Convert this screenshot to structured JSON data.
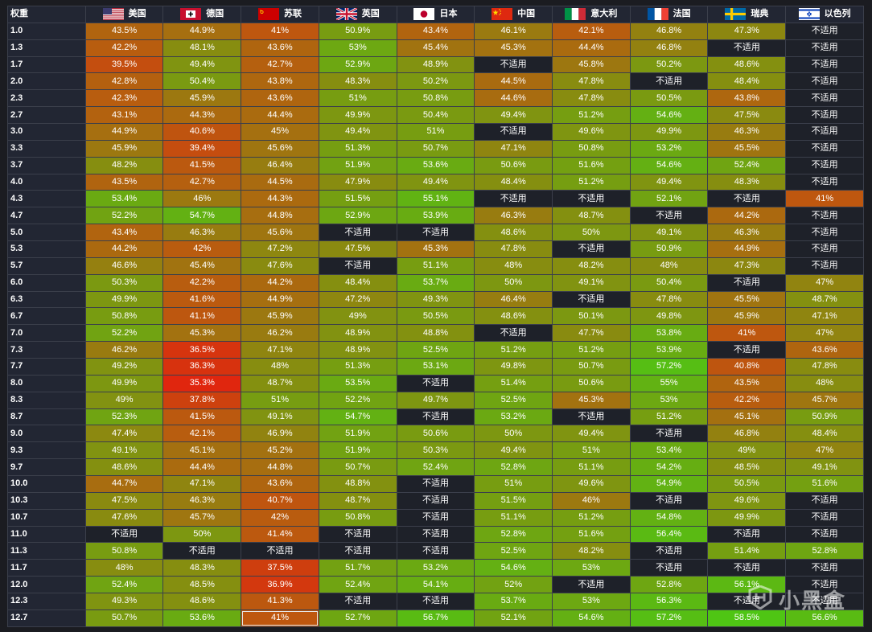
{
  "chart_data": {
    "type": "heatmap",
    "corner_label": "权重",
    "na_label": "不适用",
    "countries": [
      {
        "name": "美国",
        "flag": "us-flag"
      },
      {
        "name": "德国",
        "flag": "germany-flag"
      },
      {
        "name": "苏联",
        "flag": "ussr-flag"
      },
      {
        "name": "英国",
        "flag": "uk-flag"
      },
      {
        "name": "日本",
        "flag": "japan-flag"
      },
      {
        "name": "中国",
        "flag": "china-flag"
      },
      {
        "name": "意大利",
        "flag": "italy-flag"
      },
      {
        "name": "法国",
        "flag": "france-flag"
      },
      {
        "name": "瑞典",
        "flag": "sweden-flag"
      },
      {
        "name": "以色列",
        "flag": "israel-flag"
      }
    ],
    "rows": [
      "1.0",
      "1.3",
      "1.7",
      "2.0",
      "2.3",
      "2.7",
      "3.0",
      "3.3",
      "3.7",
      "4.0",
      "4.3",
      "4.7",
      "5.0",
      "5.3",
      "5.7",
      "6.0",
      "6.3",
      "6.7",
      "7.0",
      "7.3",
      "7.7",
      "8.0",
      "8.3",
      "8.7",
      "9.0",
      "9.3",
      "9.7",
      "10.0",
      "10.3",
      "10.7",
      "11.0",
      "11.3",
      "11.7",
      "12.0",
      "12.3",
      "12.7"
    ],
    "values": [
      [
        43.5,
        44.9,
        41,
        50.9,
        43.4,
        46.1,
        42.1,
        46.8,
        47.3,
        null
      ],
      [
        42.2,
        48.1,
        43.6,
        53,
        45.4,
        45.3,
        44.4,
        46.8,
        null,
        null
      ],
      [
        39.5,
        49.4,
        42.7,
        52.9,
        48.9,
        null,
        45.8,
        50.2,
        48.6,
        null
      ],
      [
        42.8,
        50.4,
        43.8,
        48.3,
        50.2,
        44.5,
        47.8,
        null,
        48.4,
        null
      ],
      [
        42.3,
        45.9,
        43.6,
        51,
        50.8,
        44.6,
        47.8,
        50.5,
        43.8,
        null
      ],
      [
        43.1,
        44.3,
        44.4,
        49.9,
        50.4,
        49.4,
        51.2,
        54.6,
        47.5,
        null
      ],
      [
        44.9,
        40.6,
        45,
        49.4,
        51,
        null,
        49.6,
        49.9,
        46.3,
        null
      ],
      [
        45.9,
        39.4,
        45.6,
        51.3,
        50.7,
        47.1,
        50.8,
        53.2,
        45.5,
        null
      ],
      [
        48.2,
        41.5,
        46.4,
        51.9,
        53.6,
        50.6,
        51.6,
        54.6,
        52.4,
        null
      ],
      [
        43.5,
        42.7,
        44.5,
        47.9,
        49.4,
        48.4,
        51.2,
        49.4,
        48.3,
        null
      ],
      [
        53.4,
        46,
        44.3,
        51.5,
        55.1,
        null,
        null,
        52.1,
        null,
        41
      ],
      [
        52.2,
        54.7,
        44.8,
        52.9,
        53.9,
        46.3,
        48.7,
        null,
        44.2,
        null
      ],
      [
        43.4,
        46.3,
        45.6,
        null,
        null,
        48.6,
        50,
        49.1,
        46.3,
        null
      ],
      [
        44.2,
        42,
        47.2,
        47.5,
        45.3,
        47.8,
        null,
        50.9,
        44.9,
        null
      ],
      [
        46.6,
        45.4,
        47.6,
        null,
        51.1,
        48,
        48.2,
        48,
        47.3,
        null
      ],
      [
        50.3,
        42.2,
        44.2,
        48.4,
        53.7,
        50,
        49.1,
        50.4,
        null,
        47
      ],
      [
        49.9,
        41.6,
        44.9,
        47.2,
        49.3,
        46.4,
        null,
        47.8,
        45.5,
        48.7
      ],
      [
        50.8,
        41.1,
        45.9,
        49,
        50.5,
        48.6,
        50.1,
        49.8,
        45.9,
        47.1
      ],
      [
        52.2,
        45.3,
        46.2,
        48.9,
        48.8,
        null,
        47.7,
        53.8,
        41,
        47
      ],
      [
        46.2,
        36.5,
        47.1,
        48.9,
        52.5,
        51.2,
        51.2,
        53.9,
        null,
        43.6
      ],
      [
        49.2,
        36.3,
        48,
        51.3,
        53.1,
        49.8,
        50.7,
        57.2,
        40.8,
        47.8
      ],
      [
        49.9,
        35.3,
        48.7,
        53.5,
        null,
        51.4,
        50.6,
        55,
        43.5,
        48
      ],
      [
        49,
        37.8,
        51,
        52.2,
        49.7,
        52.5,
        45.3,
        53,
        42.2,
        45.7
      ],
      [
        52.3,
        41.5,
        49.1,
        54.7,
        null,
        53.2,
        null,
        51.2,
        45.1,
        50.9
      ],
      [
        47.4,
        42.1,
        46.9,
        51.9,
        50.6,
        50,
        49.4,
        null,
        46.8,
        48.4
      ],
      [
        49.1,
        45.1,
        45.2,
        51.9,
        50.3,
        49.4,
        51,
        53.4,
        49,
        47
      ],
      [
        48.6,
        44.4,
        44.8,
        50.7,
        52.4,
        52.8,
        51.1,
        54.2,
        48.5,
        49.1
      ],
      [
        44.7,
        47.1,
        43.6,
        48.8,
        null,
        51,
        49.6,
        54.9,
        50.5,
        51.6
      ],
      [
        47.5,
        46.3,
        40.7,
        48.7,
        null,
        51.5,
        46,
        null,
        49.6,
        null
      ],
      [
        47.6,
        45.7,
        42,
        50.8,
        null,
        51.1,
        51.2,
        54.8,
        49.9,
        null
      ],
      [
        null,
        50,
        41.4,
        null,
        null,
        52.8,
        51.6,
        56.4,
        null,
        null
      ],
      [
        50.8,
        null,
        null,
        null,
        null,
        52.5,
        48.2,
        null,
        51.4,
        52.8
      ],
      [
        48,
        48.3,
        37.5,
        51.7,
        53.2,
        54.6,
        53,
        null,
        null,
        null
      ],
      [
        52.4,
        48.5,
        36.9,
        52.4,
        54.1,
        52,
        null,
        52.8,
        56.1,
        null
      ],
      [
        49.3,
        48.6,
        41.3,
        null,
        null,
        53.7,
        53,
        56.3,
        null,
        null
      ],
      [
        50.7,
        53.6,
        41,
        52.7,
        56.7,
        52.1,
        54.6,
        57.2,
        58.5,
        56.6
      ]
    ],
    "selected_cell": {
      "row": "12.7",
      "country": "苏联"
    },
    "colors": {
      "low": "#e0260e",
      "mid": "#8a8a10",
      "high": "#4fc514",
      "na_bg": "#1e2129",
      "header_bg": "#222633",
      "grid_line": "#3b3f4b"
    }
  },
  "watermark": {
    "text": "小黑盒",
    "icon": "heybox-logo-icon"
  }
}
